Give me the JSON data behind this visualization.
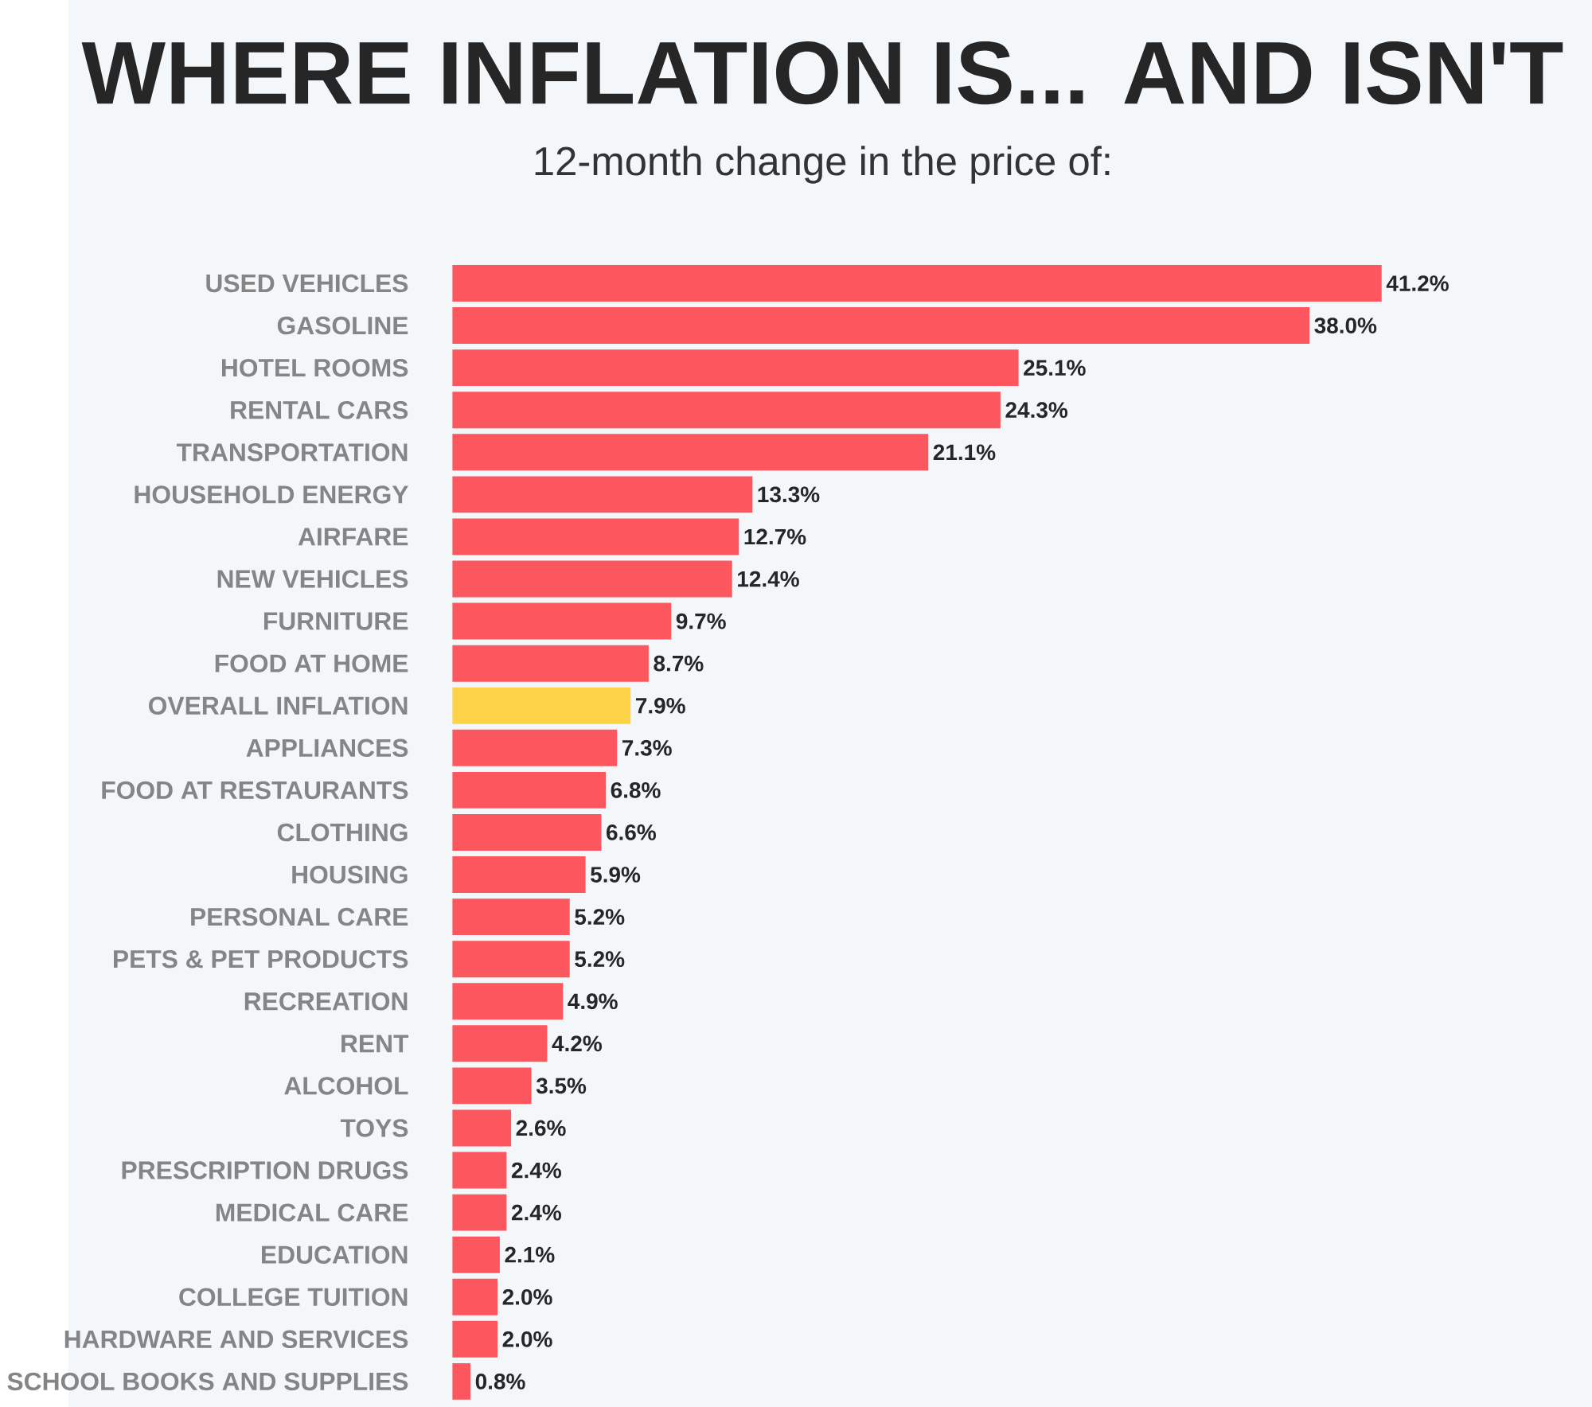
{
  "chart_data": {
    "type": "bar",
    "orientation": "horizontal",
    "title": "WHERE INFLATION IS... AND ISN'T",
    "subtitle": "12-month change in the price of:",
    "categories": [
      "USED VEHICLES",
      "GASOLINE",
      "HOTEL ROOMS",
      "RENTAL CARS",
      "TRANSPORTATION",
      "HOUSEHOLD ENERGY",
      "AIRFARE",
      "NEW VEHICLES",
      "FURNITURE",
      "FOOD AT HOME",
      "OVERALL INFLATION",
      "APPLIANCES",
      "FOOD AT RESTAURANTS",
      "CLOTHING",
      "HOUSING",
      "PERSONAL CARE",
      "PETS & PET PRODUCTS",
      "RECREATION",
      "RENT",
      "ALCOHOL",
      "TOYS",
      "PRESCRIPTION DRUGS",
      "MEDICAL CARE",
      "EDUCATION",
      "COLLEGE TUITION",
      "HARDWARE AND SERVICES",
      "SCHOOL BOOKS AND SUPPLIES"
    ],
    "values": [
      41.2,
      38.0,
      25.1,
      24.3,
      21.1,
      13.3,
      12.7,
      12.4,
      9.7,
      8.7,
      7.9,
      7.3,
      6.8,
      6.6,
      5.9,
      5.2,
      5.2,
      4.9,
      4.2,
      3.5,
      2.6,
      2.4,
      2.4,
      2.1,
      2.0,
      2.0,
      0.8
    ],
    "value_labels": [
      "41.2%",
      "38.0%",
      "25.1%",
      "24.3%",
      "21.1%",
      "13.3%",
      "12.7%",
      "12.4%",
      "9.7%",
      "8.7%",
      "7.9%",
      "7.3%",
      "6.8%",
      "6.6%",
      "5.9%",
      "5.2%",
      "5.2%",
      "4.9%",
      "4.2%",
      "3.5%",
      "2.6%",
      "2.4%",
      "2.4%",
      "2.1%",
      "2.0%",
      "2.0%",
      "0.8%"
    ],
    "colors": [
      "#fc575e",
      "#fc575e",
      "#fc575e",
      "#fc575e",
      "#fc575e",
      "#fc575e",
      "#fc575e",
      "#fc575e",
      "#fc575e",
      "#fc575e",
      "#fdd247",
      "#fc575e",
      "#fc575e",
      "#fc575e",
      "#fc575e",
      "#fc575e",
      "#fc575e",
      "#fc575e",
      "#fc575e",
      "#fc575e",
      "#fc575e",
      "#fc575e",
      "#fc575e",
      "#fc575e",
      "#fc575e",
      "#fc575e",
      "#fc575e"
    ]
  }
}
